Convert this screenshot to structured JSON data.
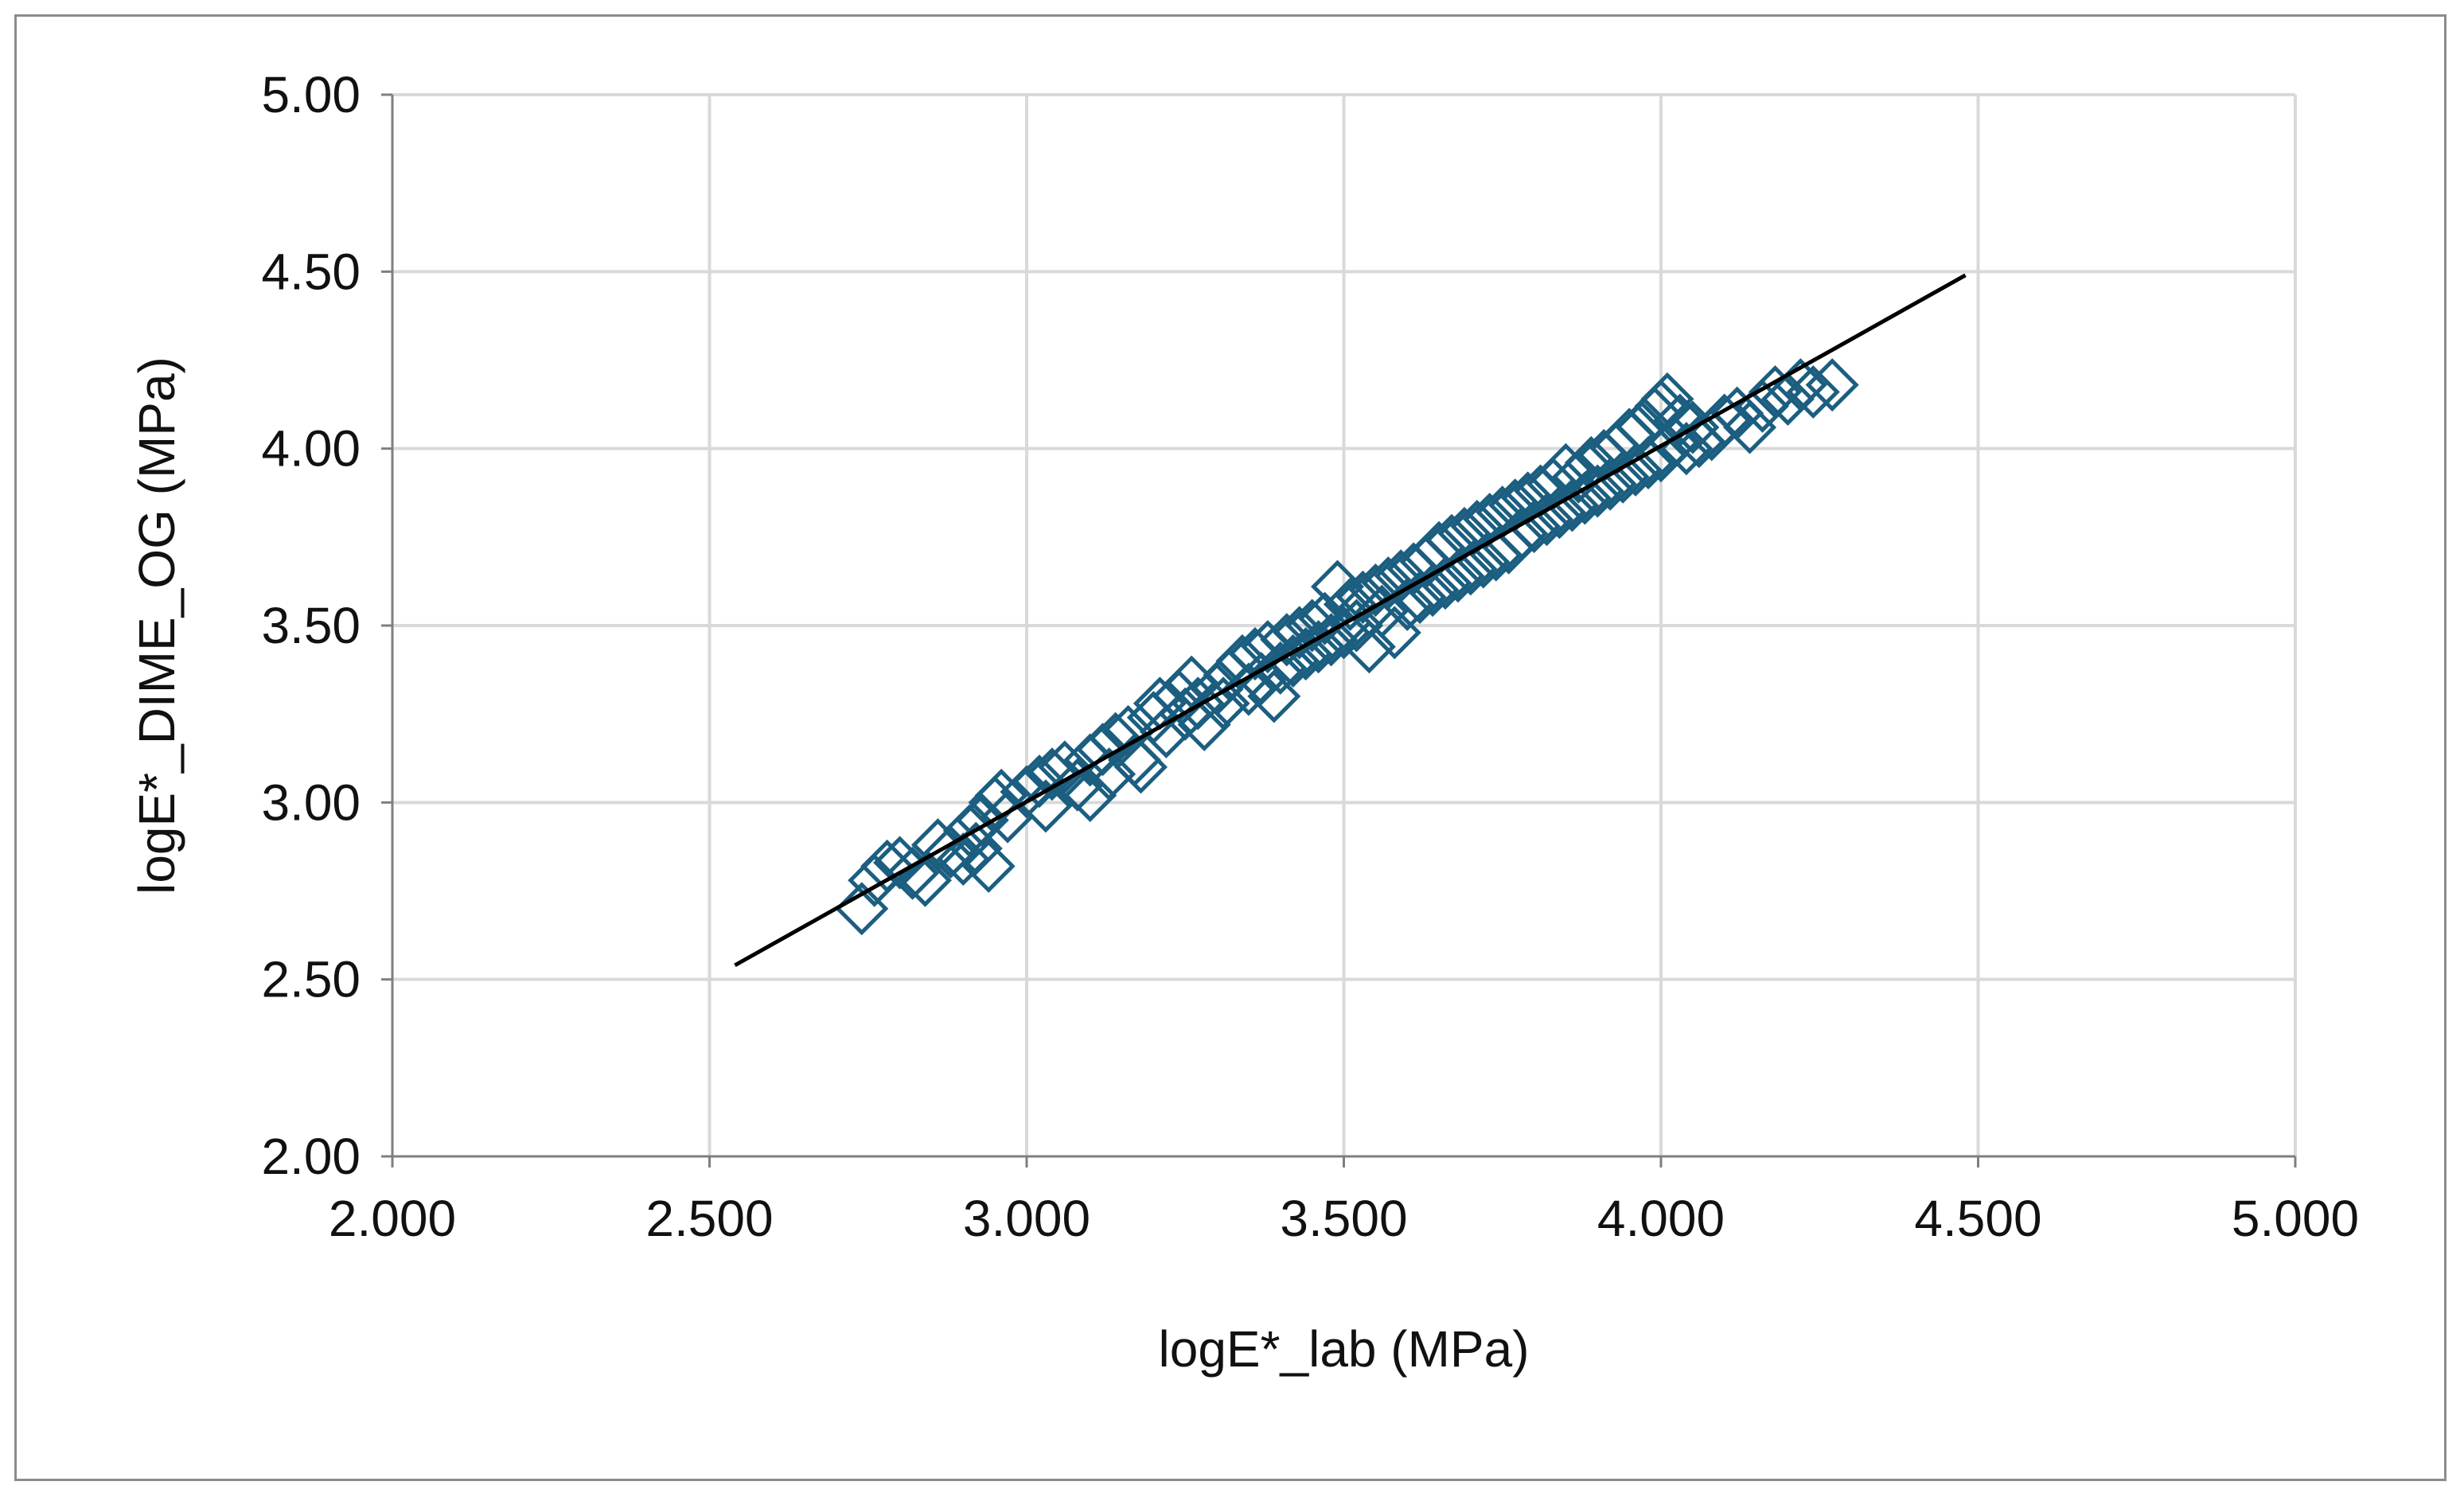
{
  "chart_data": {
    "type": "scatter",
    "title": "",
    "xlabel": "logE*_lab (MPa)",
    "ylabel": "logE*_DIME_OG (MPa)",
    "xlim": [
      2.0,
      5.0
    ],
    "ylim": [
      2.0,
      5.0
    ],
    "x_ticks": [
      "2.000",
      "2.500",
      "3.000",
      "3.500",
      "4.000",
      "4.500",
      "5.000"
    ],
    "y_ticks": [
      "2.00",
      "2.50",
      "3.00",
      "3.50",
      "4.00",
      "4.50",
      "5.00"
    ],
    "grid": true,
    "legend": "none",
    "marker": "diamond-open",
    "marker_color": "#1b5e80",
    "line_color": "#000000",
    "series": [
      {
        "kind": "scatter",
        "points": [
          [
            2.74,
            2.7
          ],
          [
            2.76,
            2.78
          ],
          [
            2.78,
            2.82
          ],
          [
            2.8,
            2.83
          ],
          [
            2.82,
            2.8
          ],
          [
            2.84,
            2.78
          ],
          [
            2.86,
            2.88
          ],
          [
            2.88,
            2.86
          ],
          [
            2.9,
            2.84
          ],
          [
            2.91,
            2.92
          ],
          [
            2.92,
            2.87
          ],
          [
            2.93,
            2.95
          ],
          [
            2.94,
            2.82
          ],
          [
            2.95,
            3.0
          ],
          [
            2.96,
            3.02
          ],
          [
            2.97,
            2.96
          ],
          [
            3.0,
            3.03
          ],
          [
            3.02,
            3.06
          ],
          [
            3.03,
            2.99
          ],
          [
            3.04,
            3.08
          ],
          [
            3.06,
            3.1
          ],
          [
            3.08,
            3.05
          ],
          [
            3.1,
            3.12
          ],
          [
            3.1,
            3.02
          ],
          [
            3.12,
            3.15
          ],
          [
            3.13,
            3.08
          ],
          [
            3.14,
            3.18
          ],
          [
            3.16,
            3.2
          ],
          [
            3.17,
            3.12
          ],
          [
            3.18,
            3.1
          ],
          [
            3.2,
            3.24
          ],
          [
            3.21,
            3.28
          ],
          [
            3.22,
            3.2
          ],
          [
            3.24,
            3.3
          ],
          [
            3.25,
            3.25
          ],
          [
            3.26,
            3.34
          ],
          [
            3.27,
            3.28
          ],
          [
            3.28,
            3.22
          ],
          [
            3.3,
            3.32
          ],
          [
            3.31,
            3.28
          ],
          [
            3.32,
            3.36
          ],
          [
            3.34,
            3.4
          ],
          [
            3.35,
            3.32
          ],
          [
            3.36,
            3.42
          ],
          [
            3.37,
            3.35
          ],
          [
            3.38,
            3.44
          ],
          [
            3.39,
            3.3
          ],
          [
            3.4,
            3.38
          ],
          [
            3.41,
            3.46
          ],
          [
            3.42,
            3.4
          ],
          [
            3.43,
            3.48
          ],
          [
            3.44,
            3.42
          ],
          [
            3.45,
            3.5
          ],
          [
            3.46,
            3.44
          ],
          [
            3.47,
            3.52
          ],
          [
            3.48,
            3.46
          ],
          [
            3.49,
            3.61
          ],
          [
            3.5,
            3.48
          ],
          [
            3.51,
            3.56
          ],
          [
            3.52,
            3.5
          ],
          [
            3.53,
            3.58
          ],
          [
            3.54,
            3.44
          ],
          [
            3.55,
            3.6
          ],
          [
            3.56,
            3.54
          ],
          [
            3.57,
            3.62
          ],
          [
            3.58,
            3.48
          ],
          [
            3.59,
            3.64
          ],
          [
            3.6,
            3.56
          ],
          [
            3.61,
            3.66
          ],
          [
            3.62,
            3.58
          ],
          [
            3.63,
            3.68
          ],
          [
            3.64,
            3.6
          ],
          [
            3.65,
            3.72
          ],
          [
            3.66,
            3.62
          ],
          [
            3.67,
            3.74
          ],
          [
            3.68,
            3.64
          ],
          [
            3.69,
            3.76
          ],
          [
            3.7,
            3.66
          ],
          [
            3.71,
            3.78
          ],
          [
            3.72,
            3.68
          ],
          [
            3.73,
            3.8
          ],
          [
            3.74,
            3.7
          ],
          [
            3.75,
            3.82
          ],
          [
            3.76,
            3.72
          ],
          [
            3.77,
            3.84
          ],
          [
            3.78,
            3.76
          ],
          [
            3.79,
            3.86
          ],
          [
            3.8,
            3.78
          ],
          [
            3.81,
            3.88
          ],
          [
            3.82,
            3.8
          ],
          [
            3.83,
            3.9
          ],
          [
            3.84,
            3.82
          ],
          [
            3.85,
            3.94
          ],
          [
            3.86,
            3.84
          ],
          [
            3.87,
            3.92
          ],
          [
            3.88,
            3.86
          ],
          [
            3.89,
            3.96
          ],
          [
            3.9,
            3.88
          ],
          [
            3.91,
            3.98
          ],
          [
            3.92,
            3.9
          ],
          [
            3.93,
            4.0
          ],
          [
            3.94,
            3.92
          ],
          [
            3.95,
            4.04
          ],
          [
            3.96,
            3.94
          ],
          [
            3.97,
            4.06
          ],
          [
            3.98,
            3.96
          ],
          [
            3.99,
            4.1
          ],
          [
            4.0,
            4.12
          ],
          [
            4.01,
            4.14
          ],
          [
            4.0,
            3.98
          ],
          [
            4.02,
            4.02
          ],
          [
            4.03,
            4.08
          ],
          [
            4.04,
            4.0
          ],
          [
            4.05,
            4.06
          ],
          [
            4.06,
            4.02
          ],
          [
            4.08,
            4.04
          ],
          [
            4.1,
            4.08
          ],
          [
            4.12,
            4.1
          ],
          [
            4.14,
            4.06
          ],
          [
            4.16,
            4.12
          ],
          [
            4.18,
            4.16
          ],
          [
            4.2,
            4.14
          ],
          [
            4.22,
            4.18
          ],
          [
            4.24,
            4.16
          ],
          [
            4.27,
            4.18
          ]
        ]
      },
      {
        "kind": "line",
        "points": [
          [
            2.54,
            2.54
          ],
          [
            4.48,
            4.49
          ]
        ]
      }
    ]
  }
}
